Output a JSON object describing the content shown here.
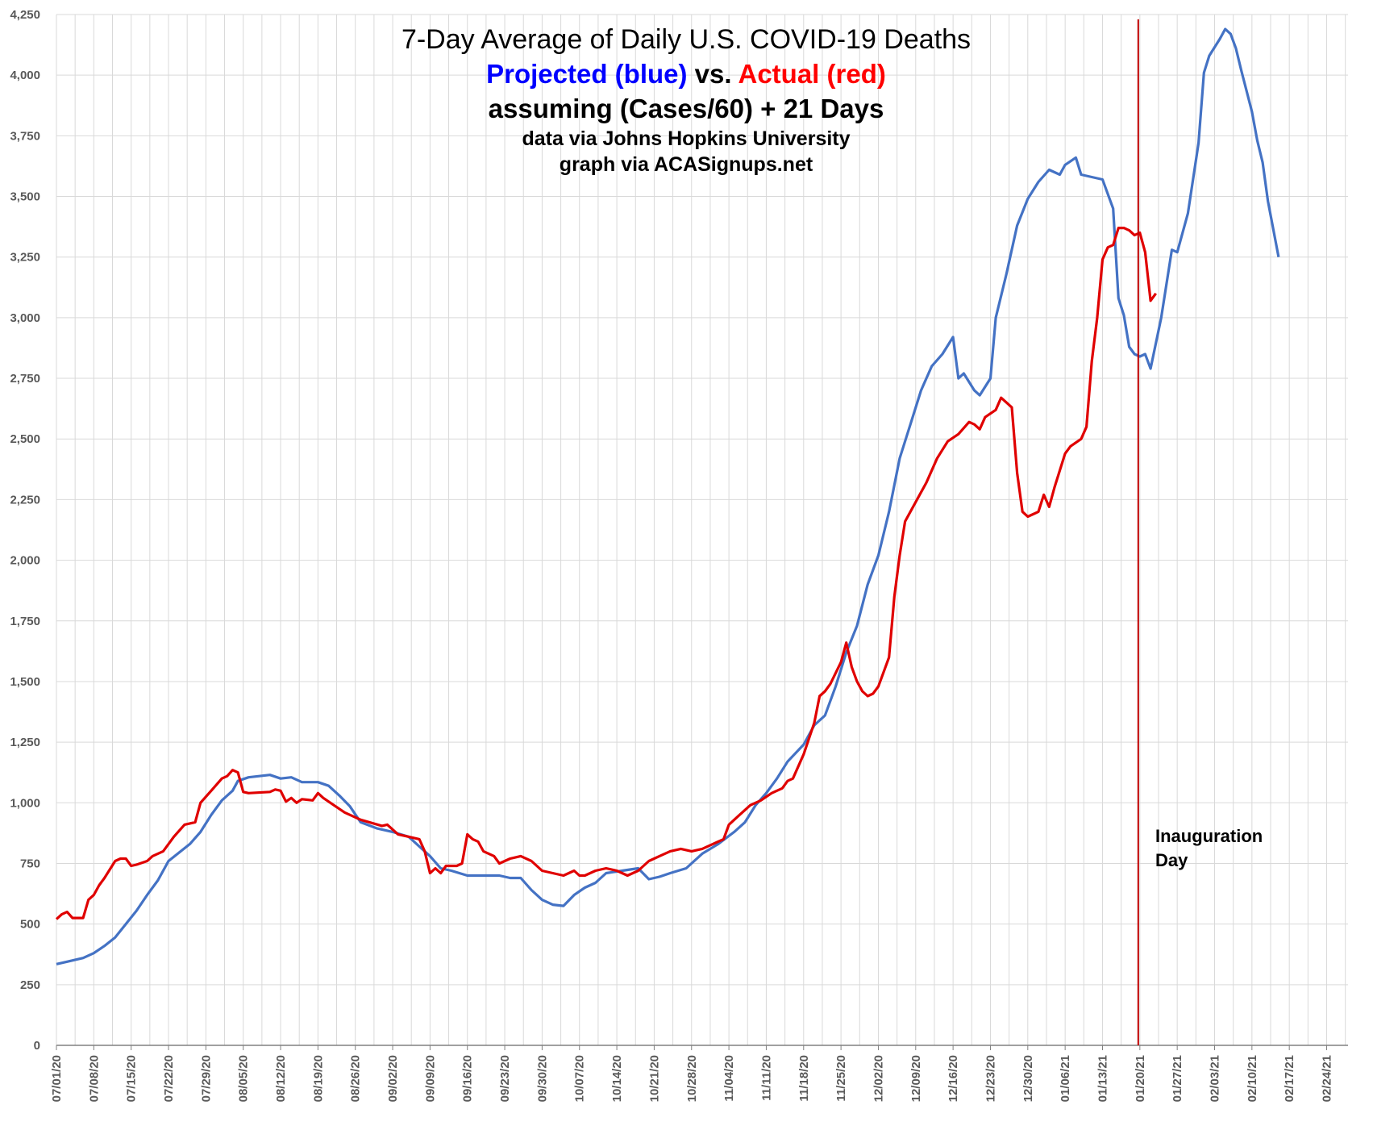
{
  "chart_data": {
    "type": "line",
    "title_lines": [
      "7-Day Average of Daily U.S. COVID-19 Deaths",
      "assuming (Cases/60) + 21 Days",
      "data via Johns Hopkins University",
      "graph via ACASignups.net"
    ],
    "subtitle": {
      "part1": "Projected (blue)",
      "part2": " vs. ",
      "part3": "Actual (red)"
    },
    "colors": {
      "projected": "#4472C4",
      "actual": "#E00000",
      "vline": "#C00000",
      "grid": "#D9D9D9"
    },
    "ylim": [
      0,
      4250
    ],
    "yticks": [
      0,
      250,
      500,
      750,
      1000,
      1250,
      1500,
      1750,
      2000,
      2250,
      2500,
      2750,
      3000,
      3250,
      3500,
      3750,
      4000,
      4250
    ],
    "ytick_labels": [
      "0",
      "250",
      "500",
      "750",
      "1,000",
      "1,250",
      "1,500",
      "1,750",
      "2,000",
      "2,250",
      "2,500",
      "2,750",
      "3,000",
      "3,250",
      "3,500",
      "3,750",
      "4,000",
      "4,250"
    ],
    "xlim": [
      "2020-07-01",
      "2021-02-28"
    ],
    "xtick_labels": [
      "07/01/20",
      "07/08/20",
      "07/15/20",
      "07/22/20",
      "07/29/20",
      "08/05/20",
      "08/12/20",
      "08/19/20",
      "08/26/20",
      "09/02/20",
      "09/09/20",
      "09/16/20",
      "09/23/20",
      "09/30/20",
      "10/07/20",
      "10/14/20",
      "10/21/20",
      "10/28/20",
      "11/04/20",
      "11/11/20",
      "11/18/20",
      "11/25/20",
      "12/02/20",
      "12/09/20",
      "12/16/20",
      "12/23/20",
      "12/30/20",
      "01/06/21",
      "01/13/21",
      "01/20/21",
      "01/27/21",
      "02/03/21",
      "02/10/21",
      "02/17/21",
      "02/24/21"
    ],
    "series": [
      {
        "key": "projected",
        "points": [
          [
            "2020-07-01",
            335
          ],
          [
            "2020-07-03",
            345
          ],
          [
            "2020-07-06",
            360
          ],
          [
            "2020-07-08",
            380
          ],
          [
            "2020-07-10",
            410
          ],
          [
            "2020-07-12",
            445
          ],
          [
            "2020-07-14",
            500
          ],
          [
            "2020-07-16",
            555
          ],
          [
            "2020-07-18",
            620
          ],
          [
            "2020-07-20",
            680
          ],
          [
            "2020-07-22",
            760
          ],
          [
            "2020-07-24",
            795
          ],
          [
            "2020-07-26",
            830
          ],
          [
            "2020-07-28",
            880
          ],
          [
            "2020-07-30",
            950
          ],
          [
            "2020-08-01",
            1010
          ],
          [
            "2020-08-03",
            1050
          ],
          [
            "2020-08-04",
            1090
          ],
          [
            "2020-08-06",
            1105
          ],
          [
            "2020-08-08",
            1110
          ],
          [
            "2020-08-10",
            1115
          ],
          [
            "2020-08-12",
            1100
          ],
          [
            "2020-08-14",
            1105
          ],
          [
            "2020-08-16",
            1085
          ],
          [
            "2020-08-19",
            1085
          ],
          [
            "2020-08-21",
            1070
          ],
          [
            "2020-08-23",
            1030
          ],
          [
            "2020-08-25",
            985
          ],
          [
            "2020-08-27",
            920
          ],
          [
            "2020-08-30",
            895
          ],
          [
            "2020-09-02",
            880
          ],
          [
            "2020-09-05",
            860
          ],
          [
            "2020-09-07",
            820
          ],
          [
            "2020-09-09",
            780
          ],
          [
            "2020-09-11",
            730
          ],
          [
            "2020-09-13",
            720
          ],
          [
            "2020-09-16",
            700
          ],
          [
            "2020-09-19",
            700
          ],
          [
            "2020-09-22",
            700
          ],
          [
            "2020-09-24",
            690
          ],
          [
            "2020-09-26",
            690
          ],
          [
            "2020-09-28",
            640
          ],
          [
            "2020-09-30",
            600
          ],
          [
            "2020-10-02",
            580
          ],
          [
            "2020-10-04",
            575
          ],
          [
            "2020-10-06",
            620
          ],
          [
            "2020-10-08",
            650
          ],
          [
            "2020-10-10",
            670
          ],
          [
            "2020-10-12",
            710
          ],
          [
            "2020-10-15",
            720
          ],
          [
            "2020-10-18",
            730
          ],
          [
            "2020-10-20",
            685
          ],
          [
            "2020-10-22",
            695
          ],
          [
            "2020-10-24",
            710
          ],
          [
            "2020-10-27",
            730
          ],
          [
            "2020-10-30",
            790
          ],
          [
            "2020-11-02",
            830
          ],
          [
            "2020-11-05",
            880
          ],
          [
            "2020-11-07",
            920
          ],
          [
            "2020-11-09",
            990
          ],
          [
            "2020-11-11",
            1040
          ],
          [
            "2020-11-13",
            1100
          ],
          [
            "2020-11-15",
            1170
          ],
          [
            "2020-11-18",
            1240
          ],
          [
            "2020-11-20",
            1320
          ],
          [
            "2020-11-22",
            1360
          ],
          [
            "2020-11-24",
            1480
          ],
          [
            "2020-11-26",
            1620
          ],
          [
            "2020-11-28",
            1730
          ],
          [
            "2020-11-30",
            1900
          ],
          [
            "2020-12-02",
            2020
          ],
          [
            "2020-12-04",
            2200
          ],
          [
            "2020-12-06",
            2420
          ],
          [
            "2020-12-08",
            2560
          ],
          [
            "2020-12-10",
            2700
          ],
          [
            "2020-12-12",
            2800
          ],
          [
            "2020-12-14",
            2850
          ],
          [
            "2020-12-16",
            2920
          ],
          [
            "2020-12-17",
            2750
          ],
          [
            "2020-12-18",
            2770
          ],
          [
            "2020-12-20",
            2700
          ],
          [
            "2020-12-21",
            2680
          ],
          [
            "2020-12-23",
            2750
          ],
          [
            "2020-12-24",
            3000
          ],
          [
            "2020-12-26",
            3180
          ],
          [
            "2020-12-28",
            3380
          ],
          [
            "2020-12-30",
            3490
          ],
          [
            "2021-01-01",
            3560
          ],
          [
            "2021-01-03",
            3610
          ],
          [
            "2021-01-05",
            3590
          ],
          [
            "2021-01-06",
            3630
          ],
          [
            "2021-01-08",
            3660
          ],
          [
            "2021-01-09",
            3590
          ],
          [
            "2021-01-11",
            3580
          ],
          [
            "2021-01-13",
            3570
          ],
          [
            "2021-01-15",
            3450
          ],
          [
            "2021-01-16",
            3080
          ],
          [
            "2021-01-17",
            3010
          ],
          [
            "2021-01-18",
            2880
          ],
          [
            "2021-01-19",
            2850
          ],
          [
            "2021-01-20",
            2840
          ],
          [
            "2021-01-21",
            2850
          ],
          [
            "2021-01-22",
            2790
          ],
          [
            "2021-01-24",
            3000
          ],
          [
            "2021-01-26",
            3280
          ],
          [
            "2021-01-27",
            3270
          ],
          [
            "2021-01-29",
            3430
          ],
          [
            "2021-01-31",
            3720
          ],
          [
            "2021-02-01",
            4010
          ],
          [
            "2021-02-02",
            4080
          ],
          [
            "2021-02-04",
            4150
          ],
          [
            "2021-02-05",
            4190
          ],
          [
            "2021-02-06",
            4170
          ],
          [
            "2021-02-07",
            4110
          ],
          [
            "2021-02-08",
            4020
          ],
          [
            "2021-02-10",
            3850
          ],
          [
            "2021-02-11",
            3730
          ],
          [
            "2021-02-12",
            3640
          ],
          [
            "2021-02-13",
            3480
          ],
          [
            "2021-02-15",
            3250
          ]
        ]
      },
      {
        "key": "actual",
        "points": [
          [
            "2020-07-01",
            520
          ],
          [
            "2020-07-02",
            540
          ],
          [
            "2020-07-03",
            550
          ],
          [
            "2020-07-04",
            525
          ],
          [
            "2020-07-06",
            525
          ],
          [
            "2020-07-07",
            600
          ],
          [
            "2020-07-08",
            620
          ],
          [
            "2020-07-09",
            660
          ],
          [
            "2020-07-10",
            690
          ],
          [
            "2020-07-12",
            760
          ],
          [
            "2020-07-13",
            770
          ],
          [
            "2020-07-14",
            770
          ],
          [
            "2020-07-15",
            740
          ],
          [
            "2020-07-16",
            745
          ],
          [
            "2020-07-18",
            760
          ],
          [
            "2020-07-19",
            780
          ],
          [
            "2020-07-21",
            800
          ],
          [
            "2020-07-23",
            860
          ],
          [
            "2020-07-25",
            910
          ],
          [
            "2020-07-27",
            920
          ],
          [
            "2020-07-28",
            1000
          ],
          [
            "2020-07-30",
            1050
          ],
          [
            "2020-08-01",
            1100
          ],
          [
            "2020-08-02",
            1110
          ],
          [
            "2020-08-03",
            1135
          ],
          [
            "2020-08-04",
            1125
          ],
          [
            "2020-08-05",
            1045
          ],
          [
            "2020-08-06",
            1040
          ],
          [
            "2020-08-10",
            1045
          ],
          [
            "2020-08-11",
            1055
          ],
          [
            "2020-08-12",
            1050
          ],
          [
            "2020-08-13",
            1005
          ],
          [
            "2020-08-14",
            1020
          ],
          [
            "2020-08-15",
            1000
          ],
          [
            "2020-08-16",
            1015
          ],
          [
            "2020-08-18",
            1010
          ],
          [
            "2020-08-19",
            1040
          ],
          [
            "2020-08-20",
            1020
          ],
          [
            "2020-08-22",
            990
          ],
          [
            "2020-08-24",
            960
          ],
          [
            "2020-08-27",
            930
          ],
          [
            "2020-08-31",
            905
          ],
          [
            "2020-09-01",
            910
          ],
          [
            "2020-09-03",
            870
          ],
          [
            "2020-09-07",
            850
          ],
          [
            "2020-09-08",
            800
          ],
          [
            "2020-09-09",
            710
          ],
          [
            "2020-09-10",
            730
          ],
          [
            "2020-09-11",
            710
          ],
          [
            "2020-09-12",
            740
          ],
          [
            "2020-09-14",
            740
          ],
          [
            "2020-09-15",
            750
          ],
          [
            "2020-09-16",
            870
          ],
          [
            "2020-09-17",
            850
          ],
          [
            "2020-09-18",
            840
          ],
          [
            "2020-09-19",
            800
          ],
          [
            "2020-09-21",
            780
          ],
          [
            "2020-09-22",
            750
          ],
          [
            "2020-09-24",
            770
          ],
          [
            "2020-09-26",
            780
          ],
          [
            "2020-09-28",
            760
          ],
          [
            "2020-09-30",
            720
          ],
          [
            "2020-10-02",
            710
          ],
          [
            "2020-10-04",
            700
          ],
          [
            "2020-10-05",
            710
          ],
          [
            "2020-10-06",
            720
          ],
          [
            "2020-10-07",
            700
          ],
          [
            "2020-10-08",
            700
          ],
          [
            "2020-10-10",
            720
          ],
          [
            "2020-10-12",
            730
          ],
          [
            "2020-10-14",
            720
          ],
          [
            "2020-10-16",
            700
          ],
          [
            "2020-10-18",
            720
          ],
          [
            "2020-10-20",
            760
          ],
          [
            "2020-10-22",
            780
          ],
          [
            "2020-10-24",
            800
          ],
          [
            "2020-10-26",
            810
          ],
          [
            "2020-10-28",
            800
          ],
          [
            "2020-10-30",
            810
          ],
          [
            "2020-11-01",
            830
          ],
          [
            "2020-11-03",
            850
          ],
          [
            "2020-11-04",
            910
          ],
          [
            "2020-11-06",
            950
          ],
          [
            "2020-11-08",
            990
          ],
          [
            "2020-11-10",
            1010
          ],
          [
            "2020-11-12",
            1040
          ],
          [
            "2020-11-14",
            1060
          ],
          [
            "2020-11-15",
            1090
          ],
          [
            "2020-11-16",
            1100
          ],
          [
            "2020-11-18",
            1200
          ],
          [
            "2020-11-20",
            1330
          ],
          [
            "2020-11-21",
            1440
          ],
          [
            "2020-11-22",
            1460
          ],
          [
            "2020-11-23",
            1490
          ],
          [
            "2020-11-25",
            1580
          ],
          [
            "2020-11-26",
            1660
          ],
          [
            "2020-11-27",
            1560
          ],
          [
            "2020-11-28",
            1500
          ],
          [
            "2020-11-29",
            1460
          ],
          [
            "2020-11-30",
            1440
          ],
          [
            "2020-12-01",
            1450
          ],
          [
            "2020-12-02",
            1480
          ],
          [
            "2020-12-04",
            1600
          ],
          [
            "2020-12-05",
            1850
          ],
          [
            "2020-12-06",
            2020
          ],
          [
            "2020-12-07",
            2160
          ],
          [
            "2020-12-09",
            2240
          ],
          [
            "2020-12-11",
            2320
          ],
          [
            "2020-12-13",
            2420
          ],
          [
            "2020-12-15",
            2490
          ],
          [
            "2020-12-17",
            2520
          ],
          [
            "2020-12-19",
            2570
          ],
          [
            "2020-12-20",
            2560
          ],
          [
            "2020-12-21",
            2540
          ],
          [
            "2020-12-22",
            2590
          ],
          [
            "2020-12-24",
            2620
          ],
          [
            "2020-12-25",
            2670
          ],
          [
            "2020-12-27",
            2630
          ],
          [
            "2020-12-28",
            2360
          ],
          [
            "2020-12-29",
            2200
          ],
          [
            "2020-12-30",
            2180
          ],
          [
            "2020-12-31",
            2190
          ],
          [
            "2021-01-01",
            2200
          ],
          [
            "2021-01-02",
            2270
          ],
          [
            "2021-01-03",
            2220
          ],
          [
            "2021-01-04",
            2300
          ],
          [
            "2021-01-06",
            2440
          ],
          [
            "2021-01-07",
            2470
          ],
          [
            "2021-01-09",
            2500
          ],
          [
            "2021-01-10",
            2550
          ],
          [
            "2021-01-11",
            2820
          ],
          [
            "2021-01-12",
            3000
          ],
          [
            "2021-01-13",
            3240
          ],
          [
            "2021-01-14",
            3290
          ],
          [
            "2021-01-15",
            3300
          ],
          [
            "2021-01-16",
            3370
          ],
          [
            "2021-01-17",
            3370
          ],
          [
            "2021-01-18",
            3360
          ],
          [
            "2021-01-19",
            3340
          ],
          [
            "2021-01-20",
            3350
          ],
          [
            "2021-01-21",
            3270
          ],
          [
            "2021-01-22",
            3070
          ],
          [
            "2021-01-23",
            3100
          ]
        ]
      }
    ],
    "vline": {
      "x": "2021-01-20",
      "label_lines": [
        "Inauguration",
        "Day"
      ]
    },
    "grid": true
  }
}
